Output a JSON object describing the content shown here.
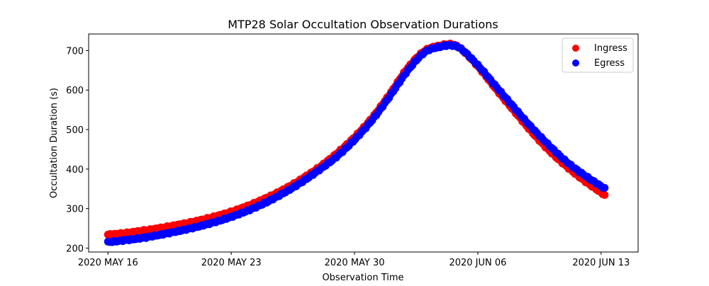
{
  "chart_data": {
    "type": "scatter",
    "title": "MTP28 Solar Occultation Observation Durations",
    "xlabel": "Observation Time",
    "ylabel": "Occultation Duration (s)",
    "x_unit": "days since 2020 MAY 16",
    "xlim": [
      -1.1,
      30.1
    ],
    "ylim": [
      190,
      742
    ],
    "xticks": [
      {
        "value": 0,
        "label": "2020 MAY 16"
      },
      {
        "value": 7,
        "label": "2020 MAY 23"
      },
      {
        "value": 14,
        "label": "2020 MAY 30"
      },
      {
        "value": 21,
        "label": "2020 JUN 06"
      },
      {
        "value": 28,
        "label": "2020 JUN 13"
      }
    ],
    "yticks": [
      {
        "value": 200,
        "label": "200"
      },
      {
        "value": 300,
        "label": "300"
      },
      {
        "value": 400,
        "label": "400"
      },
      {
        "value": 500,
        "label": "500"
      },
      {
        "value": 600,
        "label": "600"
      },
      {
        "value": 700,
        "label": "700"
      }
    ],
    "grid": false,
    "legend_position": "top-right",
    "series": [
      {
        "name": "Ingress",
        "color": "#ff0000",
        "x": [
          0,
          1,
          2,
          3,
          4,
          5,
          6,
          7,
          8,
          9,
          10,
          11,
          12,
          13,
          14,
          15,
          16,
          17,
          18,
          19,
          19.5,
          20,
          21,
          22,
          23,
          24,
          25,
          26,
          27,
          28.3
        ],
        "y": [
          234,
          238,
          244,
          251,
          259,
          268,
          279,
          292,
          308,
          327,
          349,
          375,
          405,
          440,
          481,
          530,
          590,
          655,
          700,
          714,
          716,
          706,
          660,
          604,
          550,
          497,
          449,
          408,
          372,
          331
        ]
      },
      {
        "name": "Egress",
        "color": "#0000ff",
        "x": [
          0,
          1,
          2,
          3,
          4,
          5,
          6,
          7,
          8,
          9,
          10,
          11,
          12,
          13,
          14,
          15,
          16,
          17,
          18,
          19,
          19.5,
          20,
          21,
          22,
          23,
          24,
          25,
          26,
          27,
          28.3
        ],
        "y": [
          215,
          220,
          226,
          234,
          243,
          253,
          265,
          279,
          296,
          316,
          340,
          367,
          398,
          432,
          474,
          524,
          584,
          648,
          696,
          711,
          713,
          706,
          663,
          611,
          559,
          508,
          462,
          420,
          386,
          348
        ]
      }
    ]
  }
}
